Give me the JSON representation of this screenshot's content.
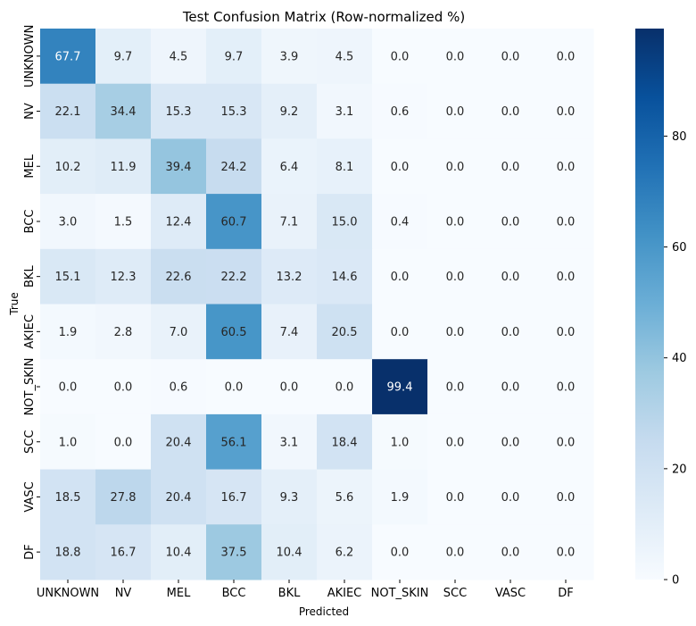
{
  "chart_data": {
    "type": "heatmap",
    "title": "Test Confusion Matrix (Row-normalized %)",
    "xlabel": "Predicted",
    "ylabel": "True",
    "x_categories": [
      "UNKNOWN",
      "NV",
      "MEL",
      "BCC",
      "BKL",
      "AKIEC",
      "NOT_SKIN",
      "SCC",
      "VASC",
      "DF"
    ],
    "y_categories": [
      "UNKNOWN",
      "NV",
      "MEL",
      "BCC",
      "BKL",
      "AKIEC",
      "NOT_SKIN",
      "SCC",
      "VASC",
      "DF"
    ],
    "values": [
      [
        67.7,
        9.7,
        4.5,
        9.7,
        3.9,
        4.5,
        0.0,
        0.0,
        0.0,
        0.0
      ],
      [
        22.1,
        34.4,
        15.3,
        15.3,
        9.2,
        3.1,
        0.6,
        0.0,
        0.0,
        0.0
      ],
      [
        10.2,
        11.9,
        39.4,
        24.2,
        6.4,
        8.1,
        0.0,
        0.0,
        0.0,
        0.0
      ],
      [
        3.0,
        1.5,
        12.4,
        60.7,
        7.1,
        15.0,
        0.4,
        0.0,
        0.0,
        0.0
      ],
      [
        15.1,
        12.3,
        22.6,
        22.2,
        13.2,
        14.6,
        0.0,
        0.0,
        0.0,
        0.0
      ],
      [
        1.9,
        2.8,
        7.0,
        60.5,
        7.4,
        20.5,
        0.0,
        0.0,
        0.0,
        0.0
      ],
      [
        0.0,
        0.0,
        0.6,
        0.0,
        0.0,
        0.0,
        99.4,
        0.0,
        0.0,
        0.0
      ],
      [
        1.0,
        0.0,
        20.4,
        56.1,
        3.1,
        18.4,
        1.0,
        0.0,
        0.0,
        0.0
      ],
      [
        18.5,
        27.8,
        20.4,
        16.7,
        9.3,
        5.6,
        1.9,
        0.0,
        0.0,
        0.0
      ],
      [
        18.8,
        16.7,
        10.4,
        37.5,
        10.4,
        6.2,
        0.0,
        0.0,
        0.0,
        0.0
      ]
    ],
    "value_format": "0.1f",
    "colormap": "Blues",
    "color_range": [
      0,
      99.4
    ],
    "colorbar_ticks": [
      0,
      20,
      40,
      60,
      80
    ],
    "grid": false,
    "colorbar_placement": "right"
  }
}
